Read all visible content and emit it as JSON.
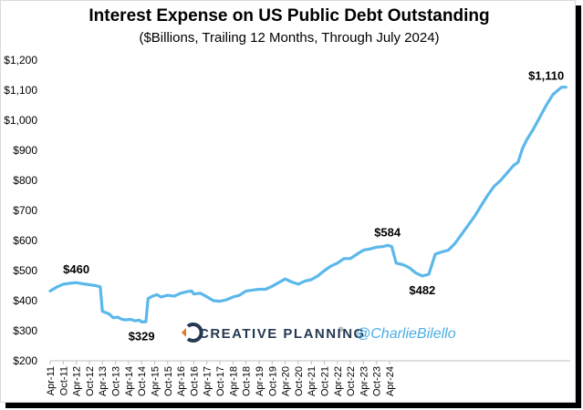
{
  "chart_data": {
    "type": "line",
    "title": "Interest Expense on US Public Debt Outstanding",
    "subtitle": "($Billions, Trailing 12 Months, Through July 2024)",
    "xlabel": "",
    "ylabel": "",
    "ylim": [
      200,
      1200
    ],
    "yticks": [
      200,
      300,
      400,
      500,
      600,
      700,
      800,
      900,
      1000,
      1100,
      1200
    ],
    "ytick_labels": [
      "$200",
      "$300",
      "$400",
      "$500",
      "$600",
      "$700",
      "$800",
      "$900",
      "$1,000",
      "$1,100",
      "$1,200"
    ],
    "x_start_month": "2011-04",
    "x_end_month": "2024-07",
    "xtick_labels": [
      "Apr-11",
      "Oct-11",
      "Apr-12",
      "Oct-12",
      "Apr-13",
      "Oct-13",
      "Apr-14",
      "Oct-14",
      "Apr-15",
      "Oct-15",
      "Apr-16",
      "Oct-16",
      "Apr-17",
      "Oct-17",
      "Apr-18",
      "Oct-18",
      "Apr-19",
      "Oct-19",
      "Apr-20",
      "Oct-20",
      "Apr-21",
      "Oct-21",
      "Apr-22",
      "Oct-22",
      "Apr-23",
      "Oct-23",
      "Apr-24"
    ],
    "series": [
      {
        "name": "Interest Expense ($B, trailing 12 months)",
        "color": "#5bb8ea",
        "points": [
          [
            0,
            432
          ],
          [
            3,
            445
          ],
          [
            6,
            455
          ],
          [
            9,
            458
          ],
          [
            12,
            460
          ],
          [
            15,
            456
          ],
          [
            18,
            453
          ],
          [
            21,
            450
          ],
          [
            23,
            446
          ],
          [
            24,
            365
          ],
          [
            27,
            356
          ],
          [
            29,
            343
          ],
          [
            31,
            345
          ],
          [
            33,
            338
          ],
          [
            35,
            336
          ],
          [
            37,
            338
          ],
          [
            39,
            333
          ],
          [
            41,
            335
          ],
          [
            42,
            329
          ],
          [
            44,
            330
          ],
          [
            45,
            407
          ],
          [
            47,
            415
          ],
          [
            49,
            420
          ],
          [
            51,
            412
          ],
          [
            54,
            418
          ],
          [
            57,
            415
          ],
          [
            60,
            425
          ],
          [
            63,
            430
          ],
          [
            65,
            432
          ],
          [
            66,
            422
          ],
          [
            69,
            425
          ],
          [
            72,
            413
          ],
          [
            75,
            400
          ],
          [
            78,
            398
          ],
          [
            81,
            403
          ],
          [
            84,
            412
          ],
          [
            87,
            418
          ],
          [
            90,
            432
          ],
          [
            93,
            435
          ],
          [
            96,
            438
          ],
          [
            99,
            438
          ],
          [
            102,
            448
          ],
          [
            105,
            460
          ],
          [
            108,
            472
          ],
          [
            111,
            462
          ],
          [
            114,
            455
          ],
          [
            117,
            465
          ],
          [
            120,
            470
          ],
          [
            123,
            482
          ],
          [
            126,
            500
          ],
          [
            129,
            515
          ],
          [
            132,
            525
          ],
          [
            135,
            540
          ],
          [
            138,
            540
          ],
          [
            141,
            555
          ],
          [
            144,
            568
          ],
          [
            147,
            572
          ],
          [
            150,
            578
          ],
          [
            153,
            580
          ],
          [
            155,
            584
          ],
          [
            157,
            580
          ],
          [
            159,
            525
          ],
          [
            162,
            520
          ],
          [
            165,
            510
          ],
          [
            168,
            492
          ],
          [
            171,
            482
          ],
          [
            174,
            488
          ],
          [
            177,
            555
          ],
          [
            180,
            562
          ],
          [
            183,
            568
          ],
          [
            186,
            590
          ],
          [
            189,
            620
          ],
          [
            192,
            650
          ],
          [
            195,
            680
          ],
          [
            198,
            715
          ],
          [
            201,
            750
          ],
          [
            204,
            780
          ],
          [
            207,
            800
          ],
          [
            210,
            825
          ],
          [
            213,
            850
          ],
          [
            215,
            860
          ],
          [
            217,
            905
          ],
          [
            219,
            935
          ],
          [
            222,
            970
          ],
          [
            225,
            1010
          ],
          [
            228,
            1050
          ],
          [
            231,
            1085
          ],
          [
            235,
            1110
          ],
          [
            237,
            1110
          ]
        ]
      }
    ],
    "annotations": [
      {
        "text": "$460",
        "month_index": 12,
        "value": 460,
        "position": "above"
      },
      {
        "text": "$329",
        "month_index": 42,
        "value": 329,
        "position": "below"
      },
      {
        "text": "$584",
        "month_index": 155,
        "value": 584,
        "position": "above"
      },
      {
        "text": "$482",
        "month_index": 171,
        "value": 482,
        "position": "below"
      },
      {
        "text": "$1,110",
        "month_index": 237,
        "value": 1110,
        "position": "above-left"
      }
    ]
  },
  "branding": {
    "company": "CREATIVE PLANNING",
    "trademark": "®",
    "handle": "@CharlieBilello"
  }
}
